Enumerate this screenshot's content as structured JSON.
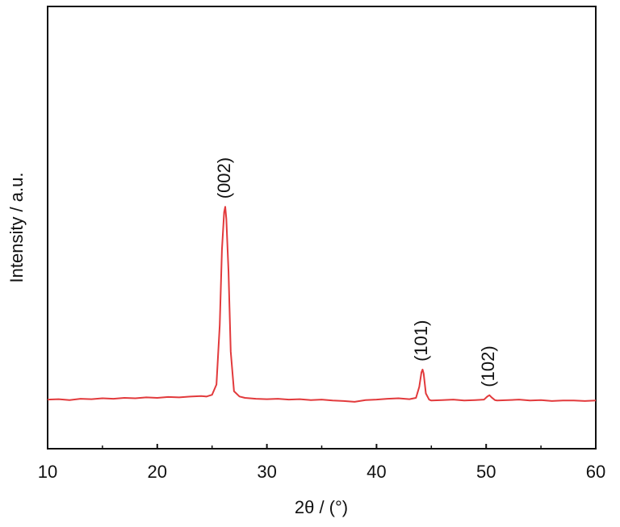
{
  "chart_data": {
    "type": "line",
    "xlabel": "2θ / (°)",
    "ylabel": "Intensity / a.u.",
    "xlim": [
      10,
      60
    ],
    "xticks": [
      10,
      20,
      30,
      40,
      50,
      60
    ],
    "xminor": [
      15,
      25,
      35,
      45,
      55
    ],
    "ylim": [
      0,
      100
    ],
    "series": [
      {
        "color": "#e23a3c",
        "x": [
          10,
          11,
          12,
          13,
          14,
          15,
          16,
          17,
          18,
          19,
          20,
          21,
          22,
          23,
          24,
          24.5,
          25,
          25.4,
          25.7,
          25.9,
          26.1,
          26.2,
          26.3,
          26.5,
          26.7,
          27,
          27.5,
          28,
          29,
          30,
          31,
          32,
          33,
          34,
          35,
          36,
          37,
          38,
          39,
          40,
          41,
          42,
          43,
          43.6,
          43.9,
          44.1,
          44.2,
          44.3,
          44.5,
          44.8,
          45,
          46,
          47,
          48,
          49,
          49.8,
          50.1,
          50.3,
          50.5,
          50.8,
          51,
          52,
          53,
          54,
          55,
          56,
          57,
          58,
          59,
          60
        ],
        "values": [
          11.1,
          11.2,
          11.0,
          11.3,
          11.2,
          11.4,
          11.3,
          11.5,
          11.4,
          11.6,
          11.5,
          11.7,
          11.6,
          11.8,
          11.9,
          11.8,
          12.2,
          14.5,
          28,
          45,
          53.5,
          54.7,
          52,
          40,
          22,
          13,
          11.8,
          11.5,
          11.3,
          11.2,
          11.3,
          11.1,
          11.2,
          11.0,
          11.1,
          10.9,
          10.8,
          10.6,
          11.0,
          11.1,
          11.3,
          11.4,
          11.2,
          11.5,
          14,
          17.3,
          17.9,
          17,
          12.5,
          11.1,
          10.9,
          11.0,
          11.1,
          10.9,
          11.0,
          11.1,
          11.8,
          12.1,
          11.6,
          11.0,
          10.9,
          11.0,
          11.1,
          10.9,
          11.0,
          10.8,
          10.9,
          10.9,
          10.8,
          10.9
        ]
      }
    ],
    "annotations": [
      {
        "text": "(002)",
        "x": 26.2,
        "y": 54.7
      },
      {
        "text": "(101)",
        "x": 44.2,
        "y": 17.9
      },
      {
        "text": "(102)",
        "x": 50.3,
        "y": 12.1
      }
    ]
  }
}
